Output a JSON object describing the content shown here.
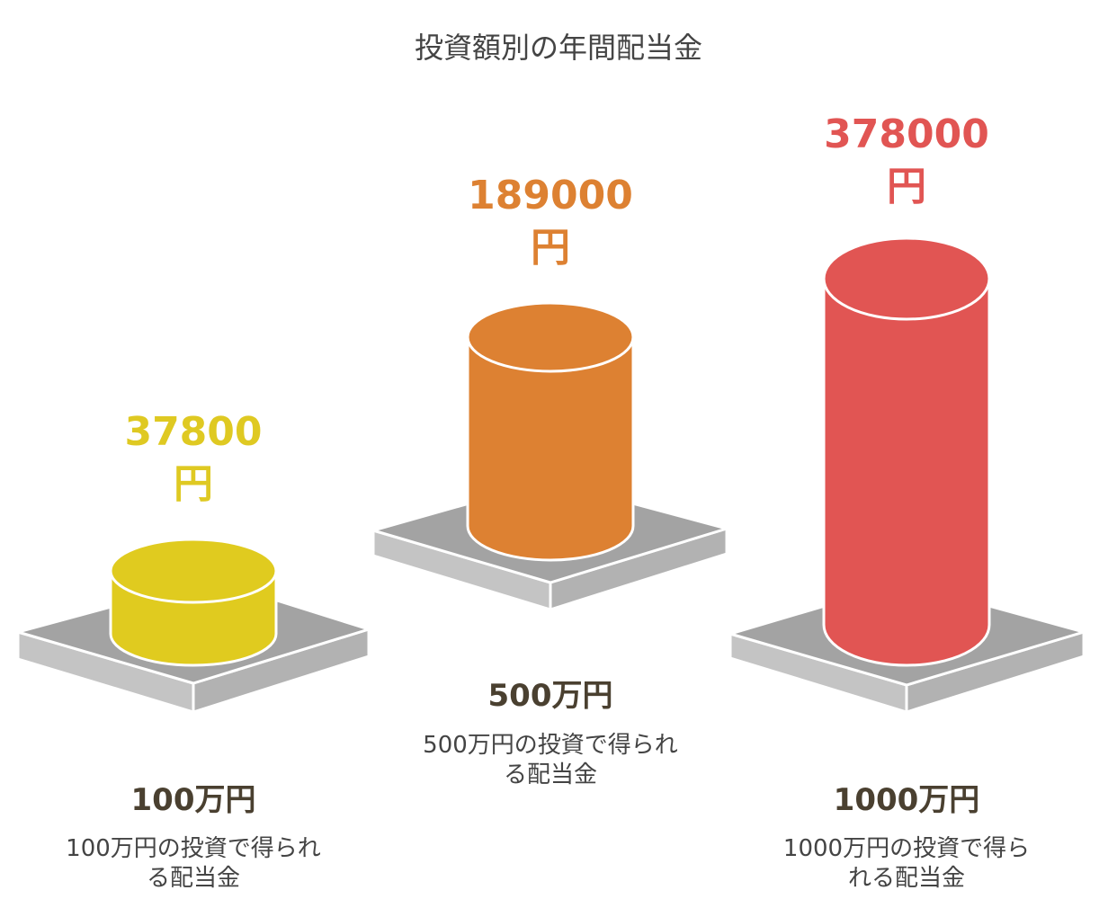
{
  "title": "投資額別の年間配当金",
  "items": [
    {
      "value": "37800",
      "unit": "円",
      "label": "100万円",
      "description": "100万円の投資で得られる配当金"
    },
    {
      "value": "189000",
      "unit": "円",
      "label": "500万円",
      "description": "500万円の投資で得られる配当金"
    },
    {
      "value": "378000",
      "unit": "円",
      "label": "1000万円",
      "description": "1000万円の投資で得られる配当金"
    }
  ]
}
